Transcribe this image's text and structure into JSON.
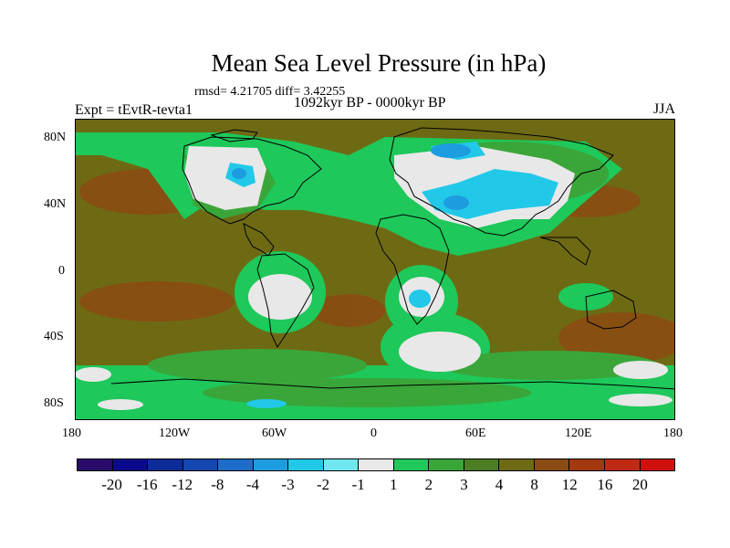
{
  "header": {
    "title": "Mean Sea Level Pressure (in hPa)",
    "stats": "rmsd= 4.21705 diff= 3.42255",
    "experiment": "Expt = tEvtR-tevta1",
    "period": "1092kyr BP - 0000kyr BP",
    "season": "JJA"
  },
  "axes": {
    "y_ticks": [
      "80N",
      "40N",
      "0",
      "40S",
      "80S"
    ],
    "x_ticks": [
      "180",
      "120W",
      "60W",
      "0",
      "60E",
      "120E",
      "180"
    ]
  },
  "colorbar": {
    "labels": [
      "-20",
      "-16",
      "-12",
      "-8",
      "-4",
      "-3",
      "-2",
      "-1",
      "1",
      "2",
      "3",
      "4",
      "8",
      "12",
      "16",
      "20"
    ],
    "colors": [
      "#2a0a6b",
      "#0a0a8c",
      "#0c2c9a",
      "#1448b0",
      "#1e6ccc",
      "#1e9ce0",
      "#22c8e8",
      "#6ee8ee",
      "#e8e8e8",
      "#1ec85a",
      "#3aa63a",
      "#4e7e24",
      "#6e6a14",
      "#8a4c12",
      "#a43810",
      "#c02a14",
      "#d0100c"
    ]
  },
  "colors": {
    "background_field": "#6e6a14",
    "positive_low": "#1ec85a",
    "positive_mid": "#3aa63a",
    "near_zero": "#e8e8e8",
    "negative_small": "#22c8e8",
    "negative_mid": "#1e9ce0",
    "positive_high": "#8a4c12"
  }
}
